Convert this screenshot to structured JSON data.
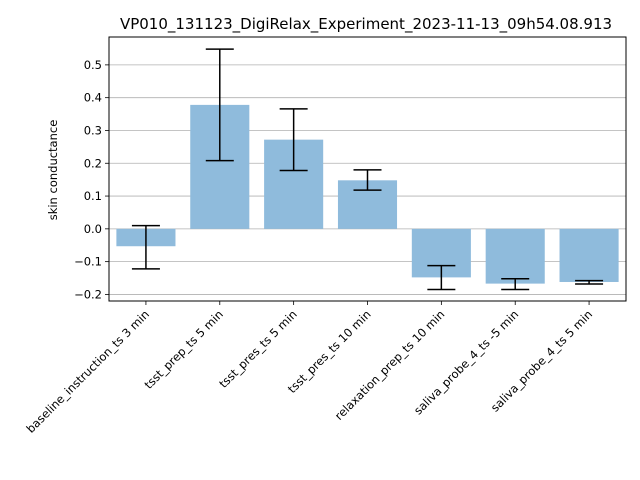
{
  "chart_data": {
    "type": "bar",
    "title": "VP010_131123_DigiRelax_Experiment_2023-11-13_09h54.08.913",
    "xlabel": "",
    "ylabel": "skin conductance",
    "ylim": [
      -0.22,
      0.585
    ],
    "yticks": [
      -0.2,
      -0.1,
      0.0,
      0.1,
      0.2,
      0.3,
      0.4,
      0.5
    ],
    "ytick_labels": [
      "−0.2",
      "−0.1",
      "0.0",
      "0.1",
      "0.2",
      "0.3",
      "0.4",
      "0.5"
    ],
    "grid": "y",
    "bar_color": "#8fbbdc",
    "categories": [
      "baseline_instruction_ts 3 min",
      "tsst_prep_ts 5 min",
      "tsst_pres_ts 5 min",
      "tsst_pres_ts 10 min",
      "relaxation_prep_ts 10 min",
      "saliva_probe_4_ts -5 min",
      "saliva_probe_4_ts 5 min"
    ],
    "values": [
      -0.053,
      0.378,
      0.272,
      0.148,
      -0.148,
      -0.167,
      -0.162
    ],
    "error_low": [
      -0.122,
      0.208,
      0.178,
      0.118,
      -0.185,
      -0.185,
      -0.168
    ],
    "error_high": [
      0.01,
      0.548,
      0.366,
      0.18,
      -0.112,
      -0.152,
      -0.158
    ]
  }
}
